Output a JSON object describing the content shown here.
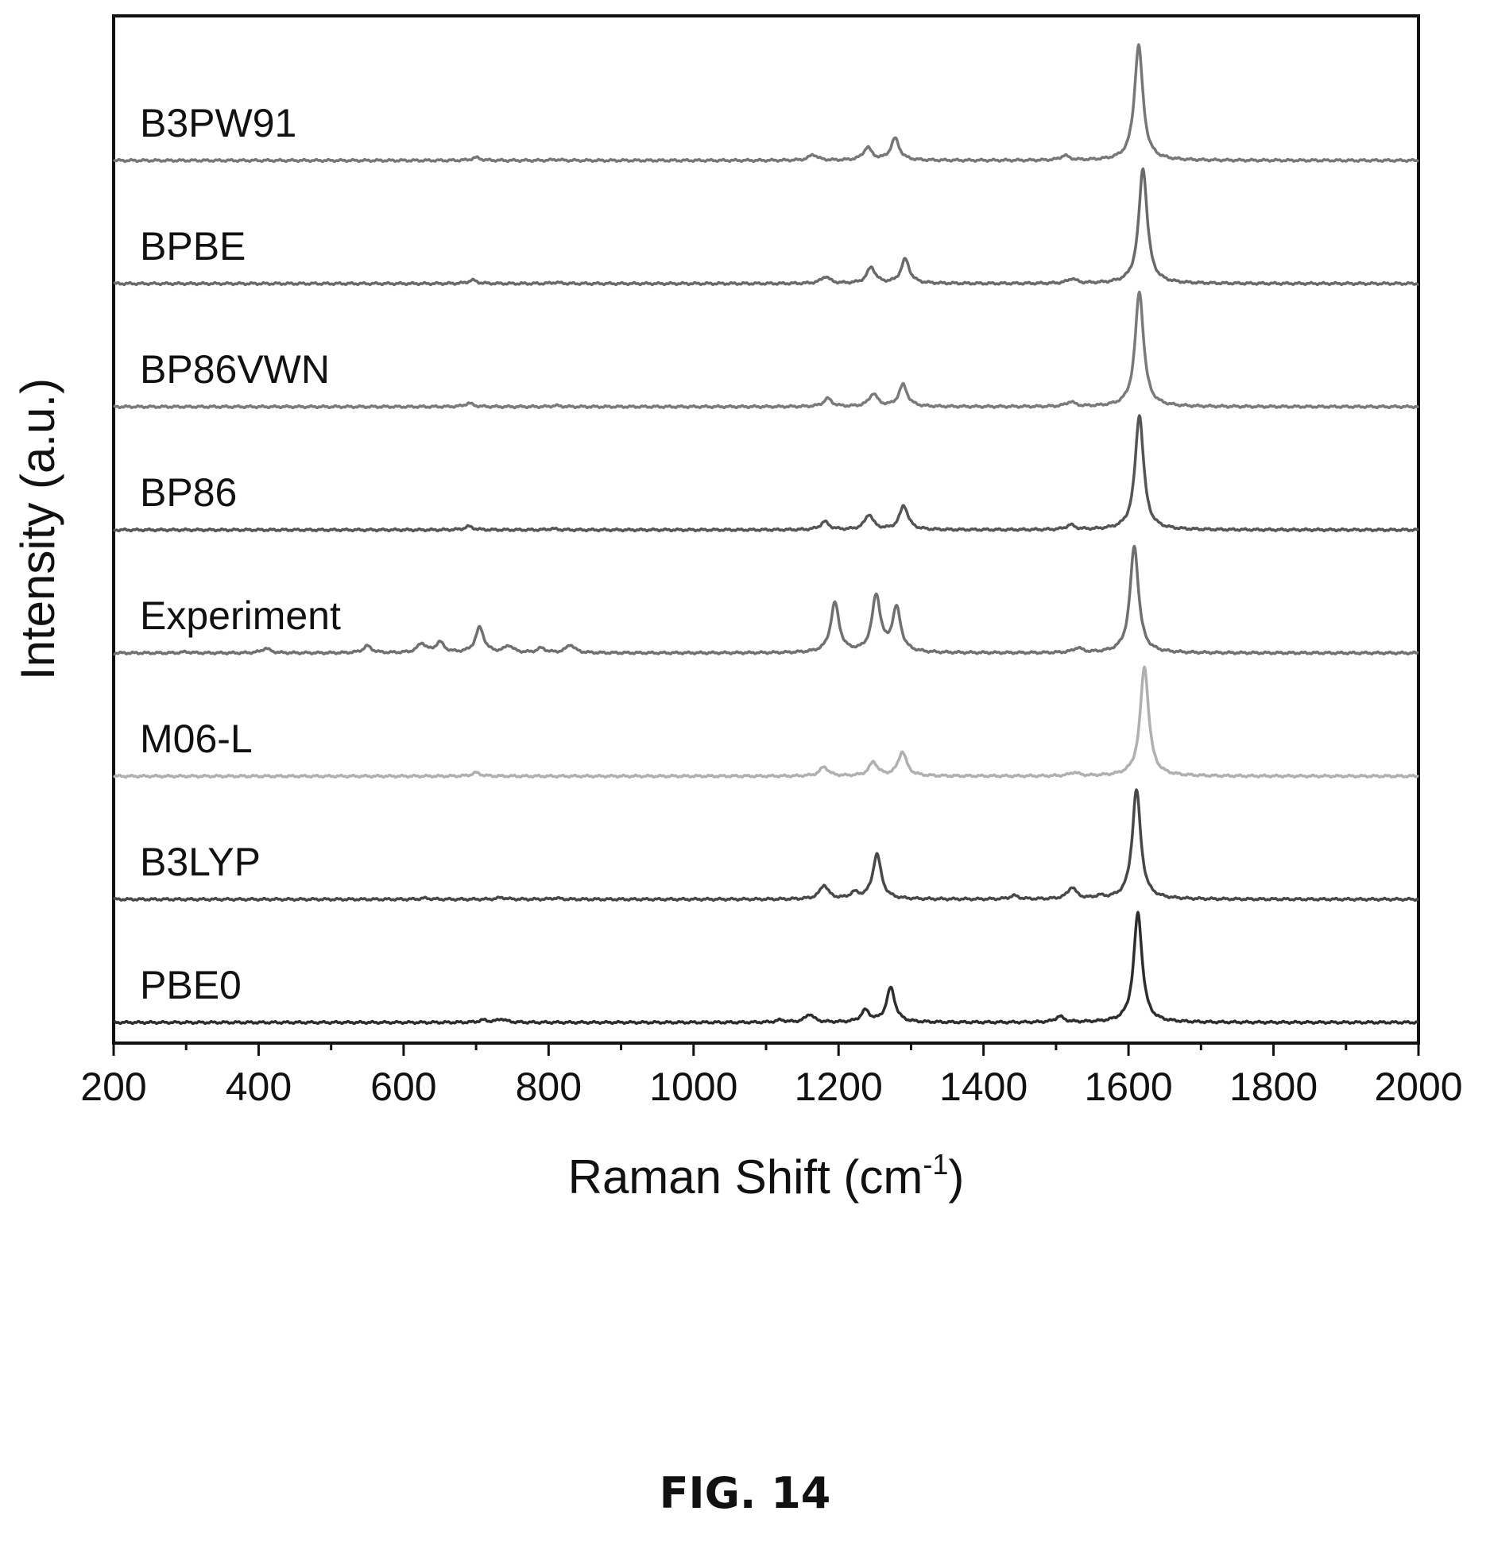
{
  "figure_caption": "FIG. 14",
  "chart_data": {
    "type": "line",
    "xlabel_main": "Raman Shift (cm",
    "xlabel_sup": "-1",
    "xlabel_close": ")",
    "ylabel": "Intensity (a.u.)",
    "xlim": [
      200,
      2000
    ],
    "xticks": [
      200,
      400,
      600,
      800,
      1000,
      1200,
      1400,
      1600,
      1800,
      2000
    ],
    "y_tick_labels": "none",
    "grid": false,
    "legend": "inline labels left of each trace",
    "series": [
      {
        "name": "B3PW91",
        "color": "#777777",
        "peaks": [
          [
            700,
            0.025
          ],
          [
            810,
            0.008
          ],
          [
            1165,
            0.05
          ],
          [
            1240,
            0.11
          ],
          [
            1278,
            0.19
          ],
          [
            1512,
            0.04
          ],
          [
            1614,
            1.0
          ]
        ]
      },
      {
        "name": "BPBE",
        "color": "#6a6a6a",
        "peaks": [
          [
            695,
            0.03
          ],
          [
            810,
            0.01
          ],
          [
            1182,
            0.06
          ],
          [
            1245,
            0.14
          ],
          [
            1292,
            0.21
          ],
          [
            1522,
            0.04
          ],
          [
            1620,
            1.0
          ]
        ]
      },
      {
        "name": "BP86VWN",
        "color": "#7a7a7a",
        "peaks": [
          [
            690,
            0.03
          ],
          [
            810,
            0.01
          ],
          [
            1185,
            0.07
          ],
          [
            1248,
            0.11
          ],
          [
            1289,
            0.19
          ],
          [
            1520,
            0.04
          ],
          [
            1615,
            1.0
          ]
        ]
      },
      {
        "name": "BP86",
        "color": "#555555",
        "peaks": [
          [
            690,
            0.03
          ],
          [
            805,
            0.01
          ],
          [
            1181,
            0.07
          ],
          [
            1242,
            0.13
          ],
          [
            1290,
            0.21
          ],
          [
            1520,
            0.04
          ],
          [
            1615,
            1.0
          ]
        ]
      },
      {
        "name": "Experiment",
        "color": "#707070",
        "peaks": [
          [
            300,
            0.01
          ],
          [
            410,
            0.04
          ],
          [
            550,
            0.06
          ],
          [
            625,
            0.08
          ],
          [
            650,
            0.09
          ],
          [
            705,
            0.22
          ],
          [
            745,
            0.06
          ],
          [
            790,
            0.04
          ],
          [
            830,
            0.07
          ],
          [
            1195,
            0.43
          ],
          [
            1252,
            0.49
          ],
          [
            1280,
            0.38
          ],
          [
            1530,
            0.04
          ],
          [
            1608,
            0.93
          ]
        ]
      },
      {
        "name": "M06-L",
        "color": "#b0b0b0",
        "peaks": [
          [
            700,
            0.03
          ],
          [
            1180,
            0.08
          ],
          [
            1248,
            0.12
          ],
          [
            1288,
            0.21
          ],
          [
            1525,
            0.03
          ],
          [
            1622,
            0.95
          ]
        ]
      },
      {
        "name": "B3LYP",
        "color": "#484848",
        "peaks": [
          [
            630,
            0.01
          ],
          [
            735,
            0.015
          ],
          [
            810,
            0.01
          ],
          [
            1180,
            0.12
          ],
          [
            1222,
            0.05
          ],
          [
            1253,
            0.39
          ],
          [
            1442,
            0.03
          ],
          [
            1522,
            0.1
          ],
          [
            1560,
            0.02
          ],
          [
            1611,
            0.95
          ]
        ]
      },
      {
        "name": "PBE0",
        "color": "#2e2e2e",
        "peaks": [
          [
            710,
            0.02
          ],
          [
            735,
            0.03
          ],
          [
            1120,
            0.02
          ],
          [
            1160,
            0.07
          ],
          [
            1237,
            0.1
          ],
          [
            1272,
            0.3
          ],
          [
            1505,
            0.05
          ],
          [
            1613,
            0.95
          ]
        ]
      }
    ]
  }
}
